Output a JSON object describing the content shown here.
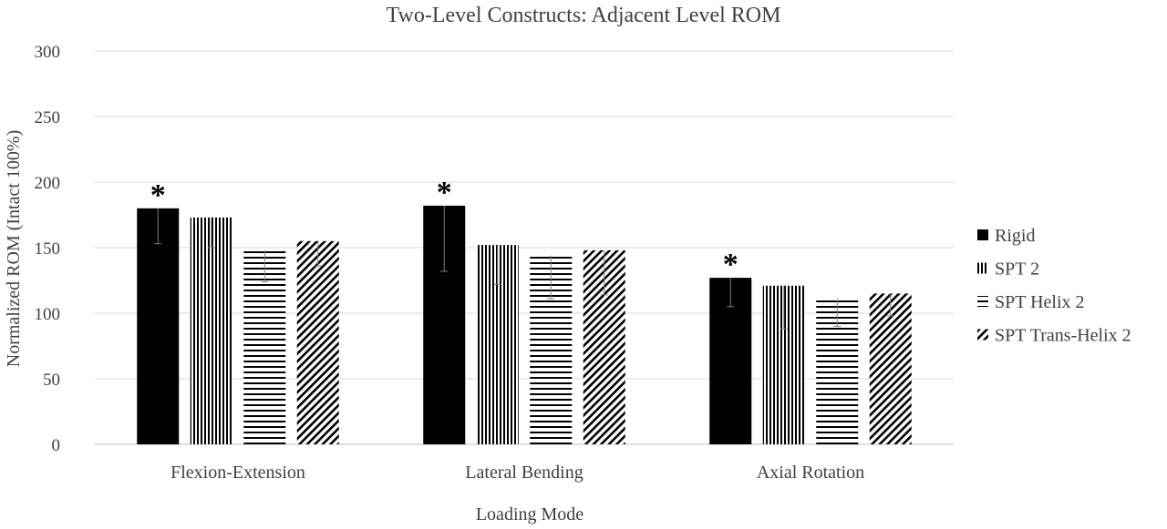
{
  "chart_data": {
    "type": "bar",
    "title": "Two-Level Constructs: Adjacent Level ROM",
    "xlabel": "Loading Mode",
    "ylabel": "Normalized ROM (Intact 100%)",
    "ylim": [
      0,
      300
    ],
    "yticks": [
      0,
      50,
      100,
      150,
      200,
      250,
      300
    ],
    "grid": true,
    "legend_position": "right",
    "categories": [
      "Flexion-Extension",
      "Lateral Bending",
      "Axial Rotation"
    ],
    "series": [
      {
        "name": "Rigid",
        "pattern": "solid",
        "values": [
          180,
          182,
          127
        ],
        "error": [
          [
            153,
            180
          ],
          [
            132,
            182
          ],
          [
            105,
            127
          ]
        ],
        "significant": [
          true,
          true,
          true
        ]
      },
      {
        "name": "SPT 2",
        "pattern": "vertical",
        "values": [
          173,
          152,
          121
        ],
        "error": [
          [
            150,
            173
          ],
          [
            122,
            152
          ],
          [
            88,
            121
          ]
        ],
        "significant": [
          false,
          false,
          false
        ]
      },
      {
        "name": "SPT Helix 2",
        "pattern": "horizontal",
        "values": [
          148,
          144,
          111
        ],
        "error": [
          [
            124,
            148
          ],
          [
            111,
            144
          ],
          [
            90,
            111
          ]
        ],
        "significant": [
          false,
          false,
          false
        ]
      },
      {
        "name": "SPT Trans-Helix 2",
        "pattern": "diagonal",
        "values": [
          155,
          148,
          115
        ],
        "error": [
          [
            136,
            155
          ],
          [
            114,
            148
          ],
          [
            98,
            115
          ]
        ],
        "significant": [
          false,
          false,
          false
        ]
      }
    ],
    "significance_marker": "*",
    "colors": {
      "bar": "#000000",
      "grid": "#d9d9d9",
      "axis": "#bfbfbf",
      "text": "#404040"
    }
  }
}
